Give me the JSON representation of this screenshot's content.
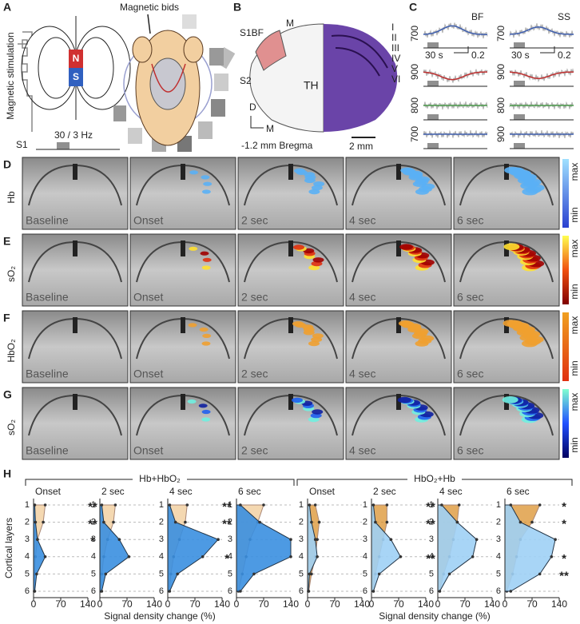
{
  "panel_a": {
    "label": "A",
    "annotation": "Magnetic bids",
    "ylabel": "Magnetic stimulation",
    "pole_n": "N",
    "pole_s": "S",
    "stim_label": "S1",
    "stim_freq": "30 / 3 Hz"
  },
  "panel_b": {
    "label": "B",
    "regions": [
      "S1BF",
      "M",
      "S2",
      "TH"
    ],
    "layers": [
      "I",
      "II",
      "III",
      "IV",
      "V",
      "VI"
    ],
    "axis_d": "D",
    "axis_m": "M",
    "bregma": "-1.2 mm Bregma",
    "scale": "2 mm"
  },
  "panel_c": {
    "label": "C",
    "columns": [
      {
        "title": "BF",
        "traces": [
          700,
          900,
          800,
          700
        ]
      },
      {
        "title": "SS",
        "traces": [
          700,
          900,
          800,
          900
        ]
      }
    ],
    "time_scale": "30 s",
    "amp_scale": "0.2"
  },
  "imaging": {
    "frames": [
      "Baseline",
      "Onset",
      "2 sec",
      "4 sec",
      "6 sec"
    ],
    "rows": [
      {
        "label": "D",
        "measure": "Hb"
      },
      {
        "label": "E",
        "measure": "sO₂"
      },
      {
        "label": "F",
        "measure": "HbO₂"
      },
      {
        "label": "G",
        "measure": "sO₂"
      }
    ],
    "colorbar_max": "max",
    "colorbar_min": "min"
  },
  "panel_h": {
    "label": "H",
    "groups": [
      {
        "title": "Hb+HbO₂",
        "xlabel": "Signal density change (%)"
      },
      {
        "title": "HbO₂+Hb",
        "xlabel": "Signal density change (%)"
      }
    ],
    "ylabel": "Cortical layers"
  },
  "chart_data": [
    {
      "type": "area",
      "title": "Onset",
      "categories": [
        1,
        2,
        3,
        4,
        5,
        6
      ],
      "xlim": [
        0,
        140
      ],
      "xticks": [
        0,
        70,
        140
      ],
      "series": [
        {
          "color": "#f0c890",
          "values": [
            30,
            25,
            10,
            5,
            3,
            2
          ]
        },
        {
          "color": "#3a8fe0",
          "values": [
            3,
            5,
            10,
            30,
            8,
            3
          ]
        }
      ],
      "stars": [
        "**",
        "**",
        "*",
        null,
        null,
        null
      ]
    },
    {
      "type": "area",
      "title": "2 sec",
      "categories": [
        1,
        2,
        3,
        4,
        5,
        6
      ],
      "xlim": [
        0,
        140
      ],
      "xticks": [
        0,
        70,
        140
      ],
      "series": [
        {
          "color": "#f0c890",
          "values": [
            40,
            35,
            20,
            10,
            5,
            3
          ]
        },
        {
          "color": "#3a8fe0",
          "values": [
            5,
            10,
            50,
            75,
            15,
            5
          ]
        }
      ],
      "stars": [
        null,
        null,
        null,
        null,
        null,
        null
      ]
    },
    {
      "type": "area",
      "title": "4 sec",
      "categories": [
        1,
        2,
        3,
        4,
        5,
        6
      ],
      "xlim": [
        0,
        140
      ],
      "xticks": [
        0,
        70,
        140
      ],
      "series": [
        {
          "color": "#f0c890",
          "values": [
            50,
            45,
            30,
            15,
            8,
            4
          ]
        },
        {
          "color": "#3a8fe0",
          "values": [
            5,
            20,
            130,
            90,
            25,
            5
          ]
        }
      ],
      "stars": [
        "**",
        "**",
        null,
        "*",
        null,
        null
      ]
    },
    {
      "type": "area",
      "title": "6 sec",
      "categories": [
        1,
        2,
        3,
        4,
        5,
        6
      ],
      "xlim": [
        0,
        140
      ],
      "xticks": [
        0,
        70,
        140
      ],
      "series": [
        {
          "color": "#f0c890",
          "values": [
            70,
            55,
            35,
            25,
            15,
            5
          ]
        },
        {
          "color": "#3a8fe0",
          "values": [
            10,
            60,
            140,
            140,
            45,
            10
          ]
        }
      ],
      "stars": [
        null,
        null,
        null,
        null,
        null,
        null
      ]
    },
    {
      "type": "area",
      "title": "Onset",
      "categories": [
        1,
        2,
        3,
        4,
        5,
        6
      ],
      "xlim": [
        0,
        140
      ],
      "xticks": [
        0,
        70,
        140
      ],
      "series": [
        {
          "color": "#d98a20",
          "values": [
            20,
            30,
            25,
            20,
            10,
            3
          ]
        },
        {
          "color": "#9fd0f5",
          "values": [
            5,
            10,
            20,
            25,
            5,
            2
          ]
        }
      ],
      "stars": [
        null,
        null,
        null,
        null,
        null,
        null
      ]
    },
    {
      "type": "area",
      "title": "2 sec",
      "categories": [
        1,
        2,
        3,
        4,
        5,
        6
      ],
      "xlim": [
        0,
        140
      ],
      "xticks": [
        0,
        70,
        140
      ],
      "series": [
        {
          "color": "#d98a20",
          "values": [
            40,
            40,
            30,
            20,
            10,
            5
          ]
        },
        {
          "color": "#9fd0f5",
          "values": [
            5,
            10,
            50,
            75,
            20,
            5
          ]
        }
      ],
      "stars": [
        "**",
        "**",
        null,
        "**",
        null,
        null
      ]
    },
    {
      "type": "area",
      "title": "4 sec",
      "categories": [
        1,
        2,
        3,
        4,
        5,
        6
      ],
      "xlim": [
        0,
        140
      ],
      "xticks": [
        0,
        70,
        140
      ],
      "series": [
        {
          "color": "#d98a20",
          "values": [
            55,
            50,
            40,
            30,
            15,
            5
          ]
        },
        {
          "color": "#9fd0f5",
          "values": [
            10,
            50,
            100,
            90,
            30,
            5
          ]
        }
      ],
      "stars": [
        null,
        null,
        null,
        null,
        null,
        null
      ]
    },
    {
      "type": "area",
      "title": "6 sec",
      "categories": [
        1,
        2,
        3,
        4,
        5,
        6
      ],
      "xlim": [
        0,
        140
      ],
      "xticks": [
        0,
        70,
        140
      ],
      "series": [
        {
          "color": "#d98a20",
          "values": [
            90,
            70,
            40,
            30,
            20,
            5
          ]
        },
        {
          "color": "#9fd0f5",
          "values": [
            15,
            40,
            130,
            120,
            90,
            15
          ]
        }
      ],
      "stars": [
        "*",
        "*",
        null,
        "*",
        "**",
        null
      ]
    }
  ]
}
